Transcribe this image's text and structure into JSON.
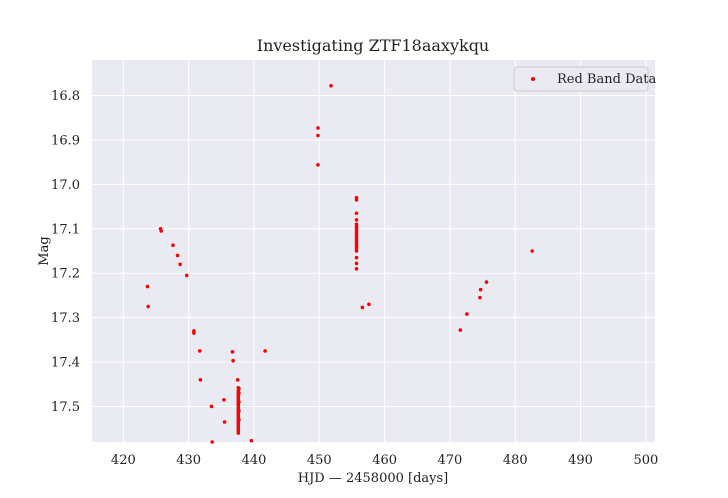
{
  "chart_data": {
    "type": "scatter",
    "title": "Investigating ZTF18aaxykqu",
    "xlabel": "HJD — 2458000 [days]",
    "ylabel": "Mag",
    "xlim": [
      415.2,
      501.4
    ],
    "ylim": [
      17.58,
      16.72
    ],
    "y_inverted": true,
    "grid": true,
    "legend_position": "top-right",
    "xticks": [
      420,
      430,
      440,
      450,
      460,
      470,
      480,
      490,
      500
    ],
    "yticks": [
      16.8,
      16.9,
      17.0,
      17.1,
      17.2,
      17.3,
      17.4,
      17.5
    ],
    "ytick_labels": [
      "16.8",
      "16.9",
      "17.0",
      "17.1",
      "17.2",
      "17.3",
      "17.4",
      "17.5"
    ],
    "series": [
      {
        "name": "Red Band Data",
        "color": "#ff0000",
        "points": [
          [
            423.7,
            17.23
          ],
          [
            423.8,
            17.275
          ],
          [
            425.7,
            17.1
          ],
          [
            425.8,
            17.105
          ],
          [
            427.6,
            17.137
          ],
          [
            428.3,
            17.16
          ],
          [
            428.7,
            17.18
          ],
          [
            429.7,
            17.205
          ],
          [
            430.8,
            17.33
          ],
          [
            430.8,
            17.335
          ],
          [
            431.7,
            17.375
          ],
          [
            431.8,
            17.44
          ],
          [
            433.5,
            17.5
          ],
          [
            433.6,
            17.58
          ],
          [
            435.4,
            17.485
          ],
          [
            435.5,
            17.535
          ],
          [
            436.7,
            17.377
          ],
          [
            436.8,
            17.397
          ],
          [
            437.5,
            17.44
          ],
          [
            437.6,
            17.458
          ],
          [
            437.6,
            17.465
          ],
          [
            437.6,
            17.47
          ],
          [
            437.6,
            17.475
          ],
          [
            437.6,
            17.48
          ],
          [
            437.6,
            17.485
          ],
          [
            437.6,
            17.49
          ],
          [
            437.6,
            17.495
          ],
          [
            437.6,
            17.5
          ],
          [
            437.6,
            17.505
          ],
          [
            437.6,
            17.51
          ],
          [
            437.6,
            17.515
          ],
          [
            437.6,
            17.52
          ],
          [
            437.6,
            17.525
          ],
          [
            437.6,
            17.53
          ],
          [
            437.6,
            17.535
          ],
          [
            437.6,
            17.54
          ],
          [
            437.6,
            17.545
          ],
          [
            437.6,
            17.55
          ],
          [
            437.6,
            17.555
          ],
          [
            437.6,
            17.56
          ],
          [
            437.7,
            17.46
          ],
          [
            437.7,
            17.47
          ],
          [
            437.7,
            17.49
          ],
          [
            437.7,
            17.51
          ],
          [
            437.7,
            17.53
          ],
          [
            439.6,
            17.577
          ],
          [
            441.7,
            17.375
          ],
          [
            449.8,
            16.873
          ],
          [
            449.8,
            16.89
          ],
          [
            449.8,
            16.956
          ],
          [
            451.8,
            16.778
          ],
          [
            455.7,
            17.03
          ],
          [
            455.7,
            17.035
          ],
          [
            455.7,
            17.065
          ],
          [
            455.7,
            17.08
          ],
          [
            455.7,
            17.09
          ],
          [
            455.7,
            17.095
          ],
          [
            455.7,
            17.1
          ],
          [
            455.7,
            17.105
          ],
          [
            455.7,
            17.11
          ],
          [
            455.7,
            17.115
          ],
          [
            455.7,
            17.12
          ],
          [
            455.7,
            17.125
          ],
          [
            455.7,
            17.13
          ],
          [
            455.7,
            17.135
          ],
          [
            455.7,
            17.14
          ],
          [
            455.7,
            17.145
          ],
          [
            455.7,
            17.15
          ],
          [
            455.7,
            17.165
          ],
          [
            455.7,
            17.178
          ],
          [
            455.7,
            17.19
          ],
          [
            456.6,
            17.277
          ],
          [
            457.6,
            17.27
          ],
          [
            471.6,
            17.328
          ],
          [
            472.6,
            17.292
          ],
          [
            474.6,
            17.255
          ],
          [
            474.7,
            17.237
          ],
          [
            475.6,
            17.22
          ],
          [
            482.6,
            17.15
          ]
        ]
      }
    ]
  }
}
